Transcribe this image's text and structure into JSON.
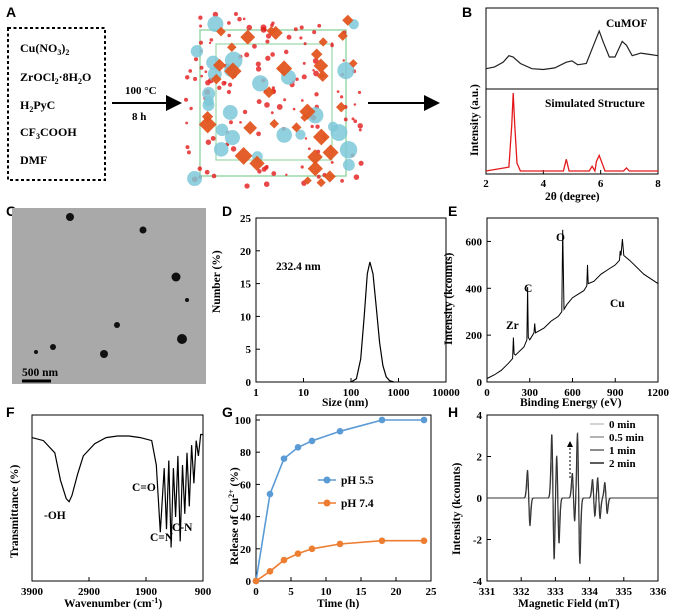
{
  "colors": {
    "blue": "#5b9bd5",
    "orange": "#ed7d31",
    "red": "#e31a1c",
    "black": "#000000",
    "orange_mof": "#e2551f",
    "cyan_mof": "#7ec8d8"
  },
  "panelA": {
    "label": "A",
    "reagents": [
      "Cu(NO3)2",
      "ZrOCl2·8H2O",
      "H2PyC",
      "CF3COOH",
      "DMF"
    ],
    "condition_temp": "100 °C",
    "condition_time": "8 h"
  },
  "chart_data": [
    {
      "panel": "B",
      "type": "line",
      "title": "",
      "xlabel": "2θ (degree)",
      "ylabel": "Intensity (a.u.)",
      "xlim": [
        2,
        8
      ],
      "xticks": [
        2,
        4,
        6,
        8
      ],
      "series": [
        {
          "name": "CuMOF",
          "x": [
            2.0,
            2.3,
            2.6,
            2.8,
            2.95,
            3.2,
            3.6,
            4.0,
            4.4,
            4.8,
            5.0,
            5.2,
            5.5,
            5.75,
            5.95,
            6.1,
            6.3,
            6.5,
            6.75,
            6.9,
            7.1,
            7.4,
            7.7,
            8.0
          ],
          "y": [
            0.55,
            0.62,
            0.8,
            1.05,
            1.0,
            0.75,
            0.55,
            0.52,
            0.58,
            0.8,
            0.85,
            0.7,
            0.75,
            1.45,
            2.0,
            1.55,
            1.0,
            1.0,
            1.6,
            1.45,
            1.05,
            1.15,
            1.1,
            1.05
          ]
        },
        {
          "name": "Simulated Structure",
          "x": [
            2.0,
            2.8,
            2.9,
            2.95,
            3.0,
            3.08,
            3.2,
            4.7,
            4.8,
            4.9,
            5.6,
            5.7,
            5.8,
            5.85,
            5.95,
            6.05,
            6.15,
            6.8,
            6.9,
            7.0,
            8.0
          ],
          "y": [
            0.0,
            0.05,
            0.6,
            1.0,
            0.6,
            0.1,
            0.0,
            0.0,
            0.15,
            0.0,
            0.0,
            0.06,
            0.0,
            0.12,
            0.2,
            0.1,
            0.0,
            0.0,
            0.04,
            0.0,
            0.0
          ]
        }
      ]
    },
    {
      "panel": "D",
      "type": "line",
      "xlabel": "Size (nm)",
      "ylabel": "Number (%)",
      "xscale": "log",
      "xlim": [
        1,
        10000
      ],
      "ylim": [
        0,
        25
      ],
      "xticks": [
        "1",
        "10",
        "100",
        "1000",
        "10000"
      ],
      "yticks": [
        0,
        5,
        10,
        15,
        20,
        25
      ],
      "annotation": "232.4 nm",
      "series": [
        {
          "name": "size distribution",
          "x": [
            100,
            130,
            160,
            190,
            220,
            250,
            290,
            340,
            400,
            470,
            550,
            650,
            800
          ],
          "y": [
            0,
            0.5,
            3.5,
            10,
            16.5,
            18.3,
            16.5,
            11.5,
            6,
            2.5,
            0.8,
            0.2,
            0
          ]
        }
      ]
    },
    {
      "panel": "E",
      "type": "line",
      "xlabel": "Binding Energy (eV)",
      "ylabel": "Intensity (kcounts)",
      "xlim": [
        0,
        1200
      ],
      "ylim": [
        0,
        700
      ],
      "xticks": [
        0,
        300,
        600,
        900,
        1200
      ],
      "yticks": [
        0,
        200,
        400,
        600
      ],
      "annotations": [
        "Zr",
        "C",
        "O",
        "Cu"
      ],
      "series": [
        {
          "name": "XPS survey",
          "x": [
            0,
            50,
            100,
            150,
            180,
            185,
            190,
            200,
            260,
            280,
            285,
            290,
            300,
            330,
            335,
            340,
            400,
            450,
            500,
            525,
            531,
            540,
            560,
            600,
            680,
            700,
            705,
            710,
            750,
            800,
            850,
            900,
            930,
            935,
            940,
            950,
            960,
            1000,
            1100,
            1200
          ],
          "y": [
            15,
            30,
            50,
            80,
            100,
            190,
            120,
            115,
            150,
            180,
            405,
            190,
            180,
            210,
            250,
            210,
            230,
            260,
            280,
            300,
            650,
            310,
            330,
            360,
            390,
            410,
            500,
            420,
            430,
            460,
            480,
            500,
            520,
            560,
            540,
            610,
            540,
            520,
            460,
            420
          ]
        }
      ]
    },
    {
      "panel": "F",
      "type": "line",
      "xlabel": "Wavenumber (cm⁻¹)",
      "ylabel": "Transmittance (%)",
      "xlim": [
        3900,
        900
      ],
      "xticks": [
        3900,
        2900,
        1900,
        900
      ],
      "annotations": [
        "-OH",
        "C=O",
        "C=N",
        "C-N"
      ],
      "series": [
        {
          "name": "FTIR",
          "x": [
            3900,
            3700,
            3500,
            3400,
            3300,
            3250,
            3200,
            3100,
            3000,
            2800,
            2600,
            2400,
            2200,
            2000,
            1800,
            1720,
            1650,
            1580,
            1540,
            1500,
            1460,
            1420,
            1380,
            1340,
            1300,
            1260,
            1220,
            1180,
            1140,
            1100,
            1060,
            1020,
            980,
            940,
            900
          ],
          "y": [
            0.9,
            0.88,
            0.8,
            0.62,
            0.5,
            0.48,
            0.52,
            0.66,
            0.78,
            0.86,
            0.9,
            0.91,
            0.91,
            0.9,
            0.88,
            0.72,
            0.28,
            0.7,
            0.3,
            0.75,
            0.18,
            0.7,
            0.38,
            0.78,
            0.22,
            0.72,
            0.4,
            0.8,
            0.45,
            0.85,
            0.6,
            0.88,
            0.78,
            0.92,
            0.92
          ]
        }
      ]
    },
    {
      "panel": "G",
      "type": "line",
      "xlabel": "Time (h)",
      "ylabel": "Release of Cu²⁺ (%)",
      "xlim": [
        0,
        25
      ],
      "ylim": [
        0,
        100
      ],
      "xticks": [
        0,
        5,
        10,
        15,
        20,
        25
      ],
      "yticks": [
        0,
        20,
        40,
        60,
        80,
        100
      ],
      "legend": [
        "pH 5.5",
        "pH 7.4"
      ],
      "x": [
        0,
        2,
        4,
        6,
        8,
        12,
        18,
        24
      ],
      "series": [
        {
          "name": "pH 5.5",
          "values": [
            0,
            54,
            76,
            83,
            87,
            93,
            100,
            100
          ]
        },
        {
          "name": "pH 7.4",
          "values": [
            0,
            6,
            13,
            17,
            20,
            23,
            25,
            25
          ]
        }
      ]
    },
    {
      "panel": "H",
      "type": "line",
      "xlabel": "Magnetic Field (mT)",
      "ylabel": "Intensity (kcounts)",
      "xlim": [
        331,
        336
      ],
      "ylim": [
        -4,
        4
      ],
      "xticks": [
        331,
        332,
        333,
        334,
        335,
        336
      ],
      "yticks": [
        -4,
        -2,
        0,
        2,
        4
      ],
      "legend": [
        "0 min",
        "0.5 min",
        "1 min",
        "2 min"
      ],
      "series_scale": {
        "0 min": 0.0,
        "0.5 min": 0.55,
        "1 min": 0.8,
        "2 min": 1.0
      },
      "base_peaks": [
        {
          "x": 332.22,
          "amp": 1.35
        },
        {
          "x": 332.93,
          "amp": 3.1
        },
        {
          "x": 333.07,
          "amp": 2.2
        },
        {
          "x": 333.53,
          "amp": 1.2
        },
        {
          "x": 333.68,
          "amp": 3.2
        },
        {
          "x": 334.12,
          "amp": 0.9
        },
        {
          "x": 334.27,
          "amp": 1.0
        },
        {
          "x": 334.48,
          "amp": 0.75
        }
      ]
    }
  ],
  "panels": {
    "B": {
      "label": "B",
      "legend_top": "CuMOF",
      "legend_bottom": "Simulated Structure"
    },
    "C": {
      "label": "C",
      "scale_bar": "500 nm"
    },
    "D": {
      "label": "D"
    },
    "E": {
      "label": "E"
    },
    "F": {
      "label": "F"
    },
    "G": {
      "label": "G"
    },
    "H": {
      "label": "H"
    }
  }
}
